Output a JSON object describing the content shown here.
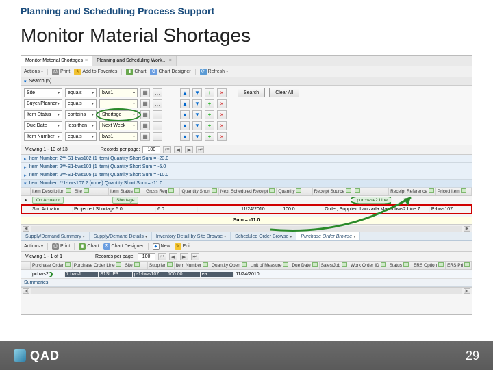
{
  "slide": {
    "breadcrumb": "Planning and Scheduling Process Support",
    "title": "Monitor Material Shortages",
    "page_number": "29",
    "logo_text": "QAD"
  },
  "tabs": [
    {
      "label": "Monitor Material Shortages",
      "active": true
    },
    {
      "label": "Planning and Scheduling Work…",
      "active": false
    }
  ],
  "toolbar": {
    "actions": "Actions",
    "print": "Print",
    "fav": "Add to Favorites",
    "chart": "Chart",
    "designer": "Chart Designer",
    "refresh": "Refresh"
  },
  "search": {
    "label": "Search (5)"
  },
  "filters": {
    "rows": [
      {
        "name": "Site",
        "op": "equals",
        "val": "bws1"
      },
      {
        "name": "Buyer/Planner",
        "op": "equals",
        "val": ""
      },
      {
        "name": "Item Status",
        "op": "contains",
        "val": "Shortage",
        "circled": true
      },
      {
        "name": "Due Date",
        "op": "less than",
        "val": "Next Week"
      },
      {
        "name": "Item Number",
        "op": "equals",
        "val": "bws1"
      }
    ],
    "search_btn": "Search",
    "clear_btn": "Clear All"
  },
  "paging1": {
    "viewing": "Viewing  1 - 13  of  13",
    "rpp_label": "Records per page:",
    "rpp": "100"
  },
  "paging2": {
    "viewing": "Viewing  1 - 1  of  1",
    "rpp_label": "Records per page:",
    "rpp": "100"
  },
  "groups": [
    "Item Number: 2**-S1-bws102 (1 item) Quantity Short  Sum = -23.0",
    "Item Number: 2**-S1-bws103 (1 item) Quantity Short  Sum = -5.0",
    "Item Number: 2**-S1-bws105 (1 item) Quantity Short  Sum = -10.0"
  ],
  "expanded_group": "Item Number: **1-bws107  2 (none) Quantity Short  Sum = -11.0",
  "col_headers_top": [
    "Item Description",
    "Site",
    "Item Status",
    "Gross Req",
    "Quantity Short",
    "Next Scheduled Receipt",
    "Quantity",
    "Receipt Source",
    "",
    "Receipt Reference",
    "Priced Item"
  ],
  "top_row": {
    "chip1": "On Actuator",
    "chip2": "Shortage",
    "desc": "Sim Actuator",
    "status": "Projected Shortage",
    "gross": "5.0",
    "qshort": "6.0",
    "gross2": "-",
    "date": "11/24/2010",
    "qty": "100.0",
    "src": "Order, Supplier: Lanizada Manufacturing",
    "ref_chip": "purchase2  Line",
    "ref2": "pcbws2         Line 7",
    "priced": "P-bws107"
  },
  "sum": {
    "label": "Sum = -11.0"
  },
  "section_tabs": [
    "Supply/Demand Summary",
    "Supply/Demand Details",
    "Inventory Detail by Site Browse",
    "Scheduled Order Browse",
    "Purchase Order Browse"
  ],
  "toolbar2": {
    "actions": "Actions",
    "print": "Print",
    "chart": "Chart",
    "designer": "Chart Designer",
    "new": "New",
    "edit": "Edit"
  },
  "col_headers_bottom": [
    "Purchase Order",
    "Purchase Order Line",
    "Site",
    "Supplier",
    "Item Number",
    "Quantity Open",
    "Unit of Measure",
    "Due Date",
    "Sales/Job",
    "Work Order ID",
    "Status",
    "ERS Option",
    "ERS Pri"
  ],
  "bottom_row": {
    "circled_val": "pcbws2",
    "line": "7  bws1",
    "supp": "S1SUP3",
    "item": "p-1-bws107",
    "qty": "100.00",
    "um": "ea",
    "due": "11/24/2010"
  },
  "summaries": "Summaries:",
  "colors": {
    "accent_blue": "#1a4c7c",
    "highlight_green": "#2a8a2a",
    "highlight_red": "#d00000"
  }
}
